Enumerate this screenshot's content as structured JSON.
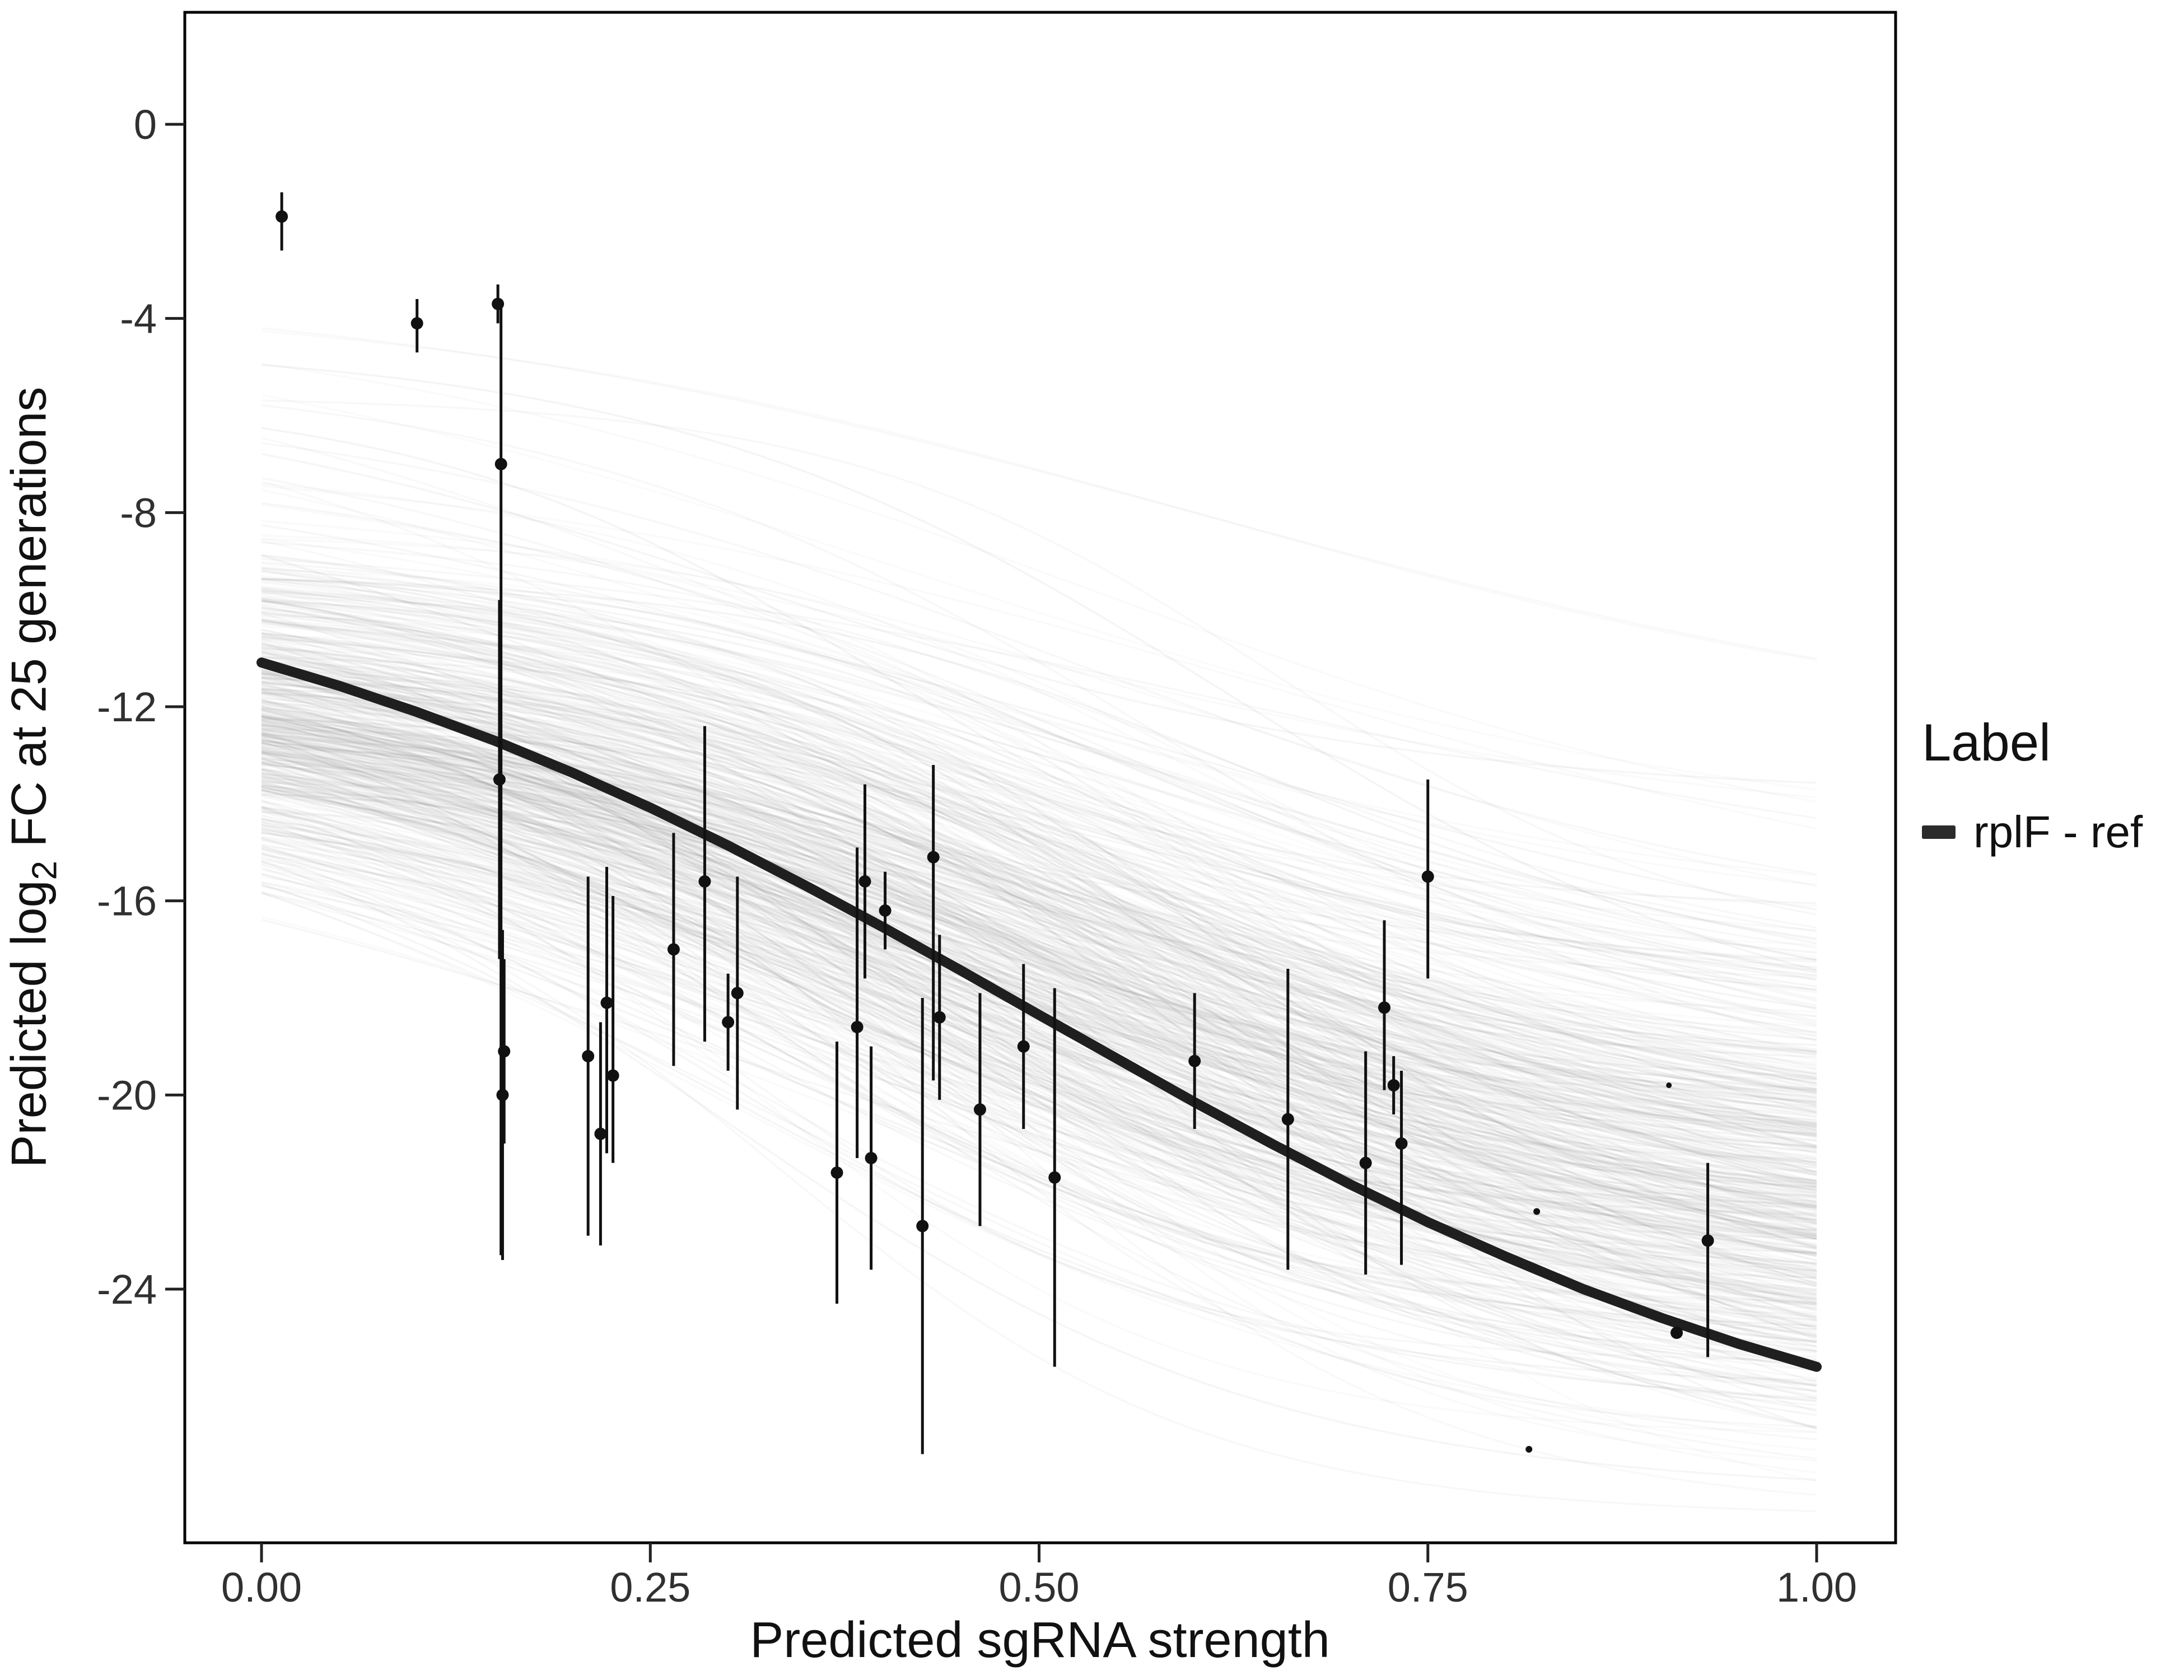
{
  "chart_data": {
    "type": "line",
    "title": "",
    "xlabel": "Predicted sgRNA strength",
    "ylabel": "Predicted log2 FC at 25 generations",
    "ylabel_parts": {
      "pre": "Predicted  log",
      "sub": "2",
      "post": " FC at 25 generations"
    },
    "xlim": [
      -0.05,
      1.05
    ],
    "ylim": [
      -29.2,
      2.3
    ],
    "grid": "off",
    "x_ticks": {
      "values": [
        0,
        0.25,
        0.5,
        0.75,
        1
      ],
      "labels": [
        "0.00",
        "0.25",
        "0.50",
        "0.75",
        "1.00"
      ]
    },
    "y_ticks": {
      "values": [
        0,
        -4,
        -8,
        -12,
        -16,
        -20,
        -24
      ],
      "labels": [
        "0",
        "-4",
        "-8",
        "-12",
        "-16",
        "-20",
        "-24"
      ]
    },
    "legend": {
      "title": "Label",
      "position": "right",
      "items": [
        {
          "label": "rplF - ref",
          "color": "#2b2b2b"
        }
      ]
    },
    "fit_curve": {
      "color": "#1f1f1f",
      "width": 18,
      "x": [
        0,
        0.05,
        0.1,
        0.15,
        0.2,
        0.25,
        0.3,
        0.35,
        0.4,
        0.45,
        0.5,
        0.55,
        0.6,
        0.65,
        0.7,
        0.75,
        0.8,
        0.85,
        0.9,
        0.95,
        1.0
      ],
      "y": [
        -11.09,
        -11.57,
        -12.11,
        -12.7,
        -13.36,
        -14.08,
        -14.86,
        -15.69,
        -16.55,
        -17.44,
        -18.35,
        -19.25,
        -20.15,
        -21.01,
        -21.84,
        -22.62,
        -23.33,
        -24.0,
        -24.59,
        -25.13,
        -25.6
      ]
    },
    "ensemble": {
      "count": 520,
      "seed": 11,
      "color": "#777777",
      "opacity": 0.045,
      "width": 3.5,
      "floor": -28.4
    },
    "points": {
      "color": "#111111",
      "items": [
        {
          "x": 0.013,
          "y": -1.9,
          "lo": -2.6,
          "hi": -1.4
        },
        {
          "x": 0.1,
          "y": -4.1,
          "lo": -4.7,
          "hi": -3.6
        },
        {
          "x": 0.152,
          "y": -3.7,
          "lo": -4.1,
          "hi": -3.3
        },
        {
          "x": 0.154,
          "y": -7.0,
          "lo": -23.3,
          "hi": -3.7
        },
        {
          "x": 0.153,
          "y": -13.5,
          "lo": -17.2,
          "hi": -9.8
        },
        {
          "x": 0.156,
          "y": -19.1,
          "lo": -21.0,
          "hi": -17.2
        },
        {
          "x": 0.155,
          "y": -20.0,
          "lo": -23.4,
          "hi": -16.6
        },
        {
          "x": 0.21,
          "y": -19.2,
          "lo": -22.9,
          "hi": -15.5
        },
        {
          "x": 0.218,
          "y": -20.8,
          "lo": -23.1,
          "hi": -18.5
        },
        {
          "x": 0.222,
          "y": -18.1,
          "lo": -21.2,
          "hi": -15.3
        },
        {
          "x": 0.226,
          "y": -19.6,
          "lo": -21.4,
          "hi": -15.9
        },
        {
          "x": 0.265,
          "y": -17.0,
          "lo": -19.4,
          "hi": -14.6
        },
        {
          "x": 0.285,
          "y": -15.6,
          "lo": -18.9,
          "hi": -12.4
        },
        {
          "x": 0.3,
          "y": -18.5,
          "lo": -19.5,
          "hi": -17.5
        },
        {
          "x": 0.306,
          "y": -17.9,
          "lo": -20.3,
          "hi": -15.5
        },
        {
          "x": 0.37,
          "y": -21.6,
          "lo": -24.3,
          "hi": -18.9
        },
        {
          "x": 0.383,
          "y": -18.6,
          "lo": -21.3,
          "hi": -14.9
        },
        {
          "x": 0.388,
          "y": -15.6,
          "lo": -17.6,
          "hi": -13.6
        },
        {
          "x": 0.392,
          "y": -21.3,
          "lo": -23.6,
          "hi": -19.0
        },
        {
          "x": 0.401,
          "y": -16.2,
          "lo": -17.0,
          "hi": -15.4
        },
        {
          "x": 0.425,
          "y": -22.7,
          "lo": -27.4,
          "hi": -18.0
        },
        {
          "x": 0.432,
          "y": -15.1,
          "lo": -19.7,
          "hi": -13.2
        },
        {
          "x": 0.436,
          "y": -18.4,
          "lo": -20.1,
          "hi": -16.7
        },
        {
          "x": 0.462,
          "y": -20.3,
          "lo": -22.7,
          "hi": -17.9
        },
        {
          "x": 0.49,
          "y": -19.0,
          "lo": -20.7,
          "hi": -17.3
        },
        {
          "x": 0.51,
          "y": -21.7,
          "lo": -25.6,
          "hi": -17.8
        },
        {
          "x": 0.6,
          "y": -19.3,
          "lo": -20.7,
          "hi": -17.9
        },
        {
          "x": 0.66,
          "y": -20.5,
          "lo": -23.6,
          "hi": -17.4
        },
        {
          "x": 0.71,
          "y": -21.4,
          "lo": -23.7,
          "hi": -19.1
        },
        {
          "x": 0.722,
          "y": -18.2,
          "lo": -19.9,
          "hi": -16.4
        },
        {
          "x": 0.728,
          "y": -19.8,
          "lo": -20.4,
          "hi": -19.2
        },
        {
          "x": 0.733,
          "y": -21.0,
          "lo": -23.5,
          "hi": -19.5
        },
        {
          "x": 0.75,
          "y": -15.5,
          "lo": -17.6,
          "hi": -13.5
        },
        {
          "x": 0.815,
          "y": -27.3,
          "lo": -27.3,
          "hi": -27.3,
          "r": 6
        },
        {
          "x": 0.82,
          "y": -22.4,
          "lo": -22.4,
          "hi": -22.4,
          "r": 6
        },
        {
          "x": 0.905,
          "y": -19.8,
          "lo": -19.8,
          "hi": -19.8,
          "r": 5
        },
        {
          "x": 0.91,
          "y": -24.9,
          "lo": -24.9,
          "hi": -24.9
        },
        {
          "x": 0.93,
          "y": -23.0,
          "lo": -25.4,
          "hi": -21.4
        }
      ]
    }
  }
}
